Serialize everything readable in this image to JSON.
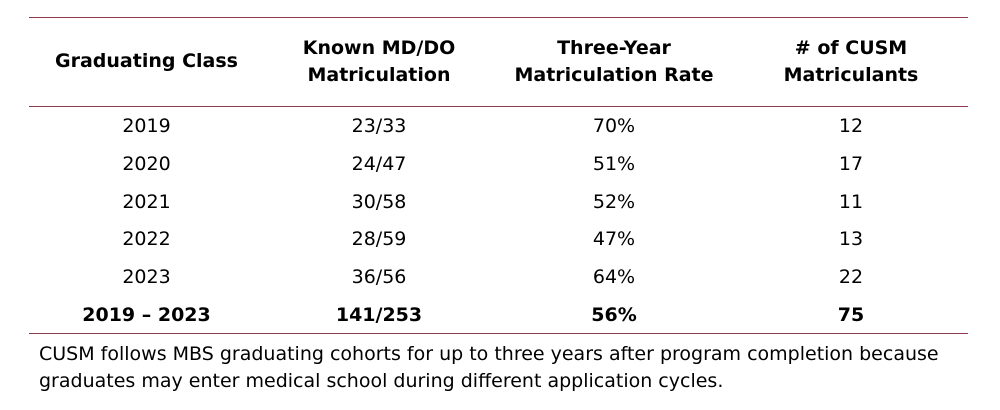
{
  "table": {
    "headers": [
      {
        "line1": "Graduating Class",
        "line2": ""
      },
      {
        "line1": "Known MD/DO",
        "line2": "Matriculation"
      },
      {
        "line1": "Three-Year",
        "line2": "Matriculation Rate"
      },
      {
        "line1": "# of CUSM",
        "line2": "Matriculants"
      }
    ],
    "rows": [
      [
        "2019",
        "23/33",
        "70%",
        "12"
      ],
      [
        "2020",
        "24/47",
        "51%",
        "17"
      ],
      [
        "2021",
        "30/58",
        "52%",
        "11"
      ],
      [
        "2022",
        "28/59",
        "47%",
        "13"
      ],
      [
        "2023",
        "36/56",
        "64%",
        "22"
      ]
    ],
    "total": [
      "2019 – 2023",
      "141/253",
      "56%",
      "75"
    ]
  },
  "footnote": {
    "line1": "CUSM follows MBS graduating cohorts for up to three years after program completion because",
    "line2": "graduates may enter medical school during different application cycles."
  },
  "colors": {
    "rule": "#8c3b4c",
    "text": "#000000",
    "background": "#ffffff"
  }
}
